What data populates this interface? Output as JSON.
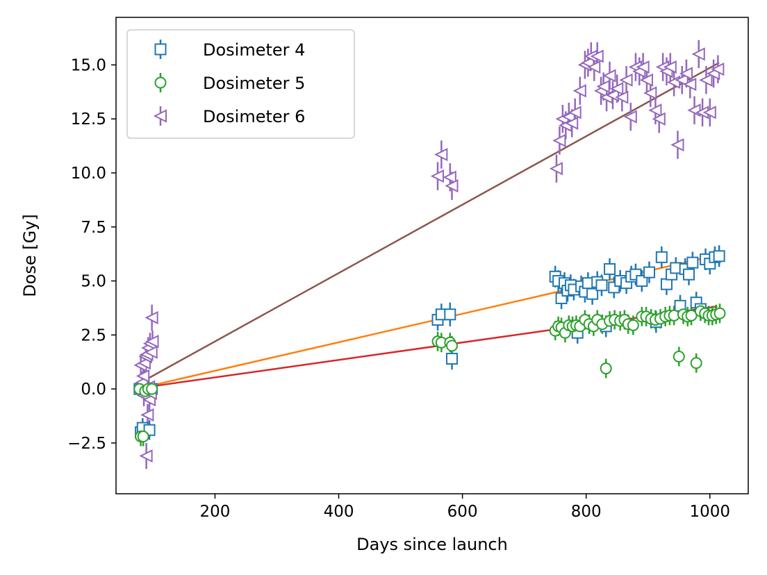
{
  "chart_data": {
    "type": "scatter",
    "title": "",
    "xlabel": "Days since launch",
    "ylabel": "Dose [Gy]",
    "xlim": [
      40,
      1062
    ],
    "ylim": [
      -4.85,
      17.2
    ],
    "x_ticks": [
      200,
      400,
      600,
      800,
      1000
    ],
    "x_tick_labels": [
      "200",
      "400",
      "600",
      "800",
      "1000"
    ],
    "y_ticks": [
      -2.5,
      0.0,
      2.5,
      5.0,
      7.5,
      10.0,
      12.5,
      15.0
    ],
    "y_tick_labels": [
      "−2.5",
      "0.0",
      "2.5",
      "5.0",
      "7.5",
      "10.0",
      "12.5",
      "15.0"
    ],
    "grid": false,
    "legend_position": "top-left",
    "series": [
      {
        "name": "Dosimeter 4",
        "marker": "square",
        "color": "#1f77b4",
        "fit_color": "#ff7f0e",
        "fit": [
          [
            80,
            0.05
          ],
          [
            1012,
            6.2
          ]
        ],
        "points": [
          [
            78,
            0.0,
            0.3
          ],
          [
            80,
            -2.0,
            0.45
          ],
          [
            83,
            -1.8,
            0.45
          ],
          [
            86,
            0.0,
            0.3
          ],
          [
            90,
            -0.15,
            0.3
          ],
          [
            94,
            -1.9,
            0.45
          ],
          [
            98,
            0.0,
            0.3
          ],
          [
            560,
            3.2,
            0.5
          ],
          [
            566,
            3.45,
            0.5
          ],
          [
            580,
            3.45,
            0.55
          ],
          [
            583,
            1.4,
            0.5
          ],
          [
            750,
            5.2,
            0.5
          ],
          [
            755,
            5.0,
            0.5
          ],
          [
            760,
            4.2,
            0.5
          ],
          [
            765,
            4.9,
            0.5
          ],
          [
            770,
            4.55,
            0.5
          ],
          [
            775,
            4.8,
            0.5
          ],
          [
            780,
            4.6,
            0.5
          ],
          [
            786,
            2.6,
            0.5
          ],
          [
            792,
            4.75,
            0.5
          ],
          [
            798,
            4.5,
            0.5
          ],
          [
            803,
            4.9,
            0.5
          ],
          [
            810,
            4.4,
            0.5
          ],
          [
            818,
            4.95,
            0.5
          ],
          [
            825,
            4.8,
            0.5
          ],
          [
            832,
            2.9,
            0.5
          ],
          [
            838,
            5.55,
            0.5
          ],
          [
            845,
            4.7,
            0.5
          ],
          [
            855,
            5.0,
            0.5
          ],
          [
            865,
            4.9,
            0.5
          ],
          [
            873,
            5.2,
            0.5
          ],
          [
            880,
            5.3,
            0.5
          ],
          [
            890,
            5.0,
            0.5
          ],
          [
            902,
            5.4,
            0.5
          ],
          [
            913,
            3.1,
            0.5
          ],
          [
            922,
            6.1,
            0.5
          ],
          [
            930,
            4.85,
            0.5
          ],
          [
            938,
            5.3,
            0.5
          ],
          [
            945,
            5.6,
            0.5
          ],
          [
            952,
            3.85,
            0.5
          ],
          [
            960,
            5.55,
            0.5
          ],
          [
            966,
            5.3,
            0.5
          ],
          [
            972,
            5.85,
            0.5
          ],
          [
            978,
            4.0,
            0.5
          ],
          [
            985,
            3.7,
            0.5
          ],
          [
            993,
            6.0,
            0.5
          ],
          [
            1000,
            5.8,
            0.5
          ],
          [
            1008,
            6.1,
            0.5
          ],
          [
            1015,
            6.15,
            0.5
          ]
        ]
      },
      {
        "name": "Dosimeter 5",
        "marker": "circle",
        "color": "#2ca02c",
        "fit_color": "#d62728",
        "fit": [
          [
            80,
            0.05
          ],
          [
            1012,
            3.82
          ]
        ],
        "points": [
          [
            78,
            0.0,
            0.3
          ],
          [
            80,
            -2.2,
            0.45
          ],
          [
            84,
            -2.2,
            0.45
          ],
          [
            87,
            -0.1,
            0.3
          ],
          [
            92,
            0.0,
            0.3
          ],
          [
            98,
            0.0,
            0.3
          ],
          [
            560,
            2.2,
            0.45
          ],
          [
            566,
            2.15,
            0.45
          ],
          [
            580,
            2.15,
            0.45
          ],
          [
            583,
            2.0,
            0.45
          ],
          [
            750,
            2.7,
            0.45
          ],
          [
            755,
            2.9,
            0.45
          ],
          [
            760,
            2.85,
            0.45
          ],
          [
            766,
            2.6,
            0.45
          ],
          [
            772,
            2.95,
            0.45
          ],
          [
            778,
            2.9,
            0.45
          ],
          [
            784,
            2.95,
            0.45
          ],
          [
            790,
            2.9,
            0.45
          ],
          [
            798,
            3.2,
            0.45
          ],
          [
            805,
            3.0,
            0.45
          ],
          [
            812,
            2.9,
            0.45
          ],
          [
            818,
            3.2,
            0.45
          ],
          [
            826,
            3.0,
            0.45
          ],
          [
            832,
            0.95,
            0.45
          ],
          [
            838,
            3.15,
            0.45
          ],
          [
            846,
            3.2,
            0.45
          ],
          [
            855,
            3.15,
            0.45
          ],
          [
            862,
            3.2,
            0.45
          ],
          [
            868,
            3.0,
            0.45
          ],
          [
            876,
            2.95,
            0.45
          ],
          [
            890,
            3.35,
            0.45
          ],
          [
            897,
            3.35,
            0.45
          ],
          [
            905,
            3.25,
            0.45
          ],
          [
            912,
            3.2,
            0.45
          ],
          [
            920,
            3.25,
            0.45
          ],
          [
            928,
            3.35,
            0.45
          ],
          [
            935,
            3.4,
            0.45
          ],
          [
            942,
            3.4,
            0.45
          ],
          [
            950,
            1.5,
            0.45
          ],
          [
            957,
            3.45,
            0.45
          ],
          [
            964,
            3.35,
            0.45
          ],
          [
            970,
            3.4,
            0.45
          ],
          [
            978,
            1.2,
            0.45
          ],
          [
            985,
            3.6,
            0.45
          ],
          [
            992,
            3.5,
            0.45
          ],
          [
            998,
            3.4,
            0.45
          ],
          [
            1004,
            3.4,
            0.45
          ],
          [
            1010,
            3.45,
            0.45
          ],
          [
            1016,
            3.5,
            0.45
          ]
        ]
      },
      {
        "name": "Dosimeter 6",
        "marker": "triangle-left",
        "color": "#9467bd",
        "fit_color": "#8c564b",
        "fit": [
          [
            80,
            0.3
          ],
          [
            1015,
            15.1
          ]
        ],
        "points": [
          [
            80,
            1.1,
            0.5
          ],
          [
            82,
            0.3,
            0.5
          ],
          [
            84,
            0.6,
            0.5
          ],
          [
            85,
            -0.3,
            0.5
          ],
          [
            86,
            1.2,
            0.5
          ],
          [
            88,
            1.5,
            0.5
          ],
          [
            89,
            -3.1,
            0.6
          ],
          [
            90,
            1.6,
            0.5
          ],
          [
            91,
            -1.2,
            0.5
          ],
          [
            92,
            1.9,
            0.5
          ],
          [
            93,
            0.1,
            0.5
          ],
          [
            94,
            -0.5,
            0.5
          ],
          [
            95,
            2.1,
            0.5
          ],
          [
            96,
            -0.2,
            0.5
          ],
          [
            97,
            1.7,
            0.5
          ],
          [
            98,
            3.3,
            0.6
          ],
          [
            99,
            2.2,
            0.5
          ],
          [
            560,
            9.85,
            0.65
          ],
          [
            566,
            10.85,
            0.65
          ],
          [
            580,
            9.8,
            0.65
          ],
          [
            583,
            9.4,
            0.65
          ],
          [
            752,
            10.2,
            0.65
          ],
          [
            757,
            11.5,
            0.65
          ],
          [
            762,
            12.5,
            0.65
          ],
          [
            767,
            12.2,
            0.65
          ],
          [
            772,
            12.6,
            0.65
          ],
          [
            777,
            12.3,
            0.65
          ],
          [
            782,
            12.8,
            0.65
          ],
          [
            790,
            13.8,
            0.65
          ],
          [
            798,
            15.0,
            0.65
          ],
          [
            803,
            15.1,
            0.65
          ],
          [
            808,
            15.4,
            0.65
          ],
          [
            813,
            14.9,
            0.65
          ],
          [
            818,
            15.4,
            0.65
          ],
          [
            824,
            13.8,
            0.65
          ],
          [
            828,
            14.0,
            0.65
          ],
          [
            833,
            13.5,
            0.65
          ],
          [
            838,
            14.5,
            0.65
          ],
          [
            843,
            13.6,
            0.65
          ],
          [
            850,
            13.9,
            0.65
          ],
          [
            858,
            13.5,
            0.65
          ],
          [
            865,
            14.3,
            0.65
          ],
          [
            872,
            12.6,
            0.65
          ],
          [
            880,
            14.9,
            0.65
          ],
          [
            886,
            14.7,
            0.65
          ],
          [
            892,
            14.9,
            0.65
          ],
          [
            898,
            14.3,
            0.65
          ],
          [
            904,
            13.7,
            0.65
          ],
          [
            912,
            12.9,
            0.65
          ],
          [
            918,
            12.5,
            0.65
          ],
          [
            924,
            14.9,
            0.65
          ],
          [
            930,
            14.7,
            0.65
          ],
          [
            936,
            14.9,
            0.65
          ],
          [
            942,
            14.2,
            0.65
          ],
          [
            948,
            11.3,
            0.65
          ],
          [
            955,
            14.3,
            0.65
          ],
          [
            962,
            14.6,
            0.65
          ],
          [
            968,
            14.1,
            0.65
          ],
          [
            975,
            12.9,
            0.65
          ],
          [
            982,
            15.5,
            0.65
          ],
          [
            988,
            12.8,
            0.65
          ],
          [
            994,
            14.3,
            0.65
          ],
          [
            1000,
            12.8,
            0.65
          ],
          [
            1006,
            14.6,
            0.65
          ],
          [
            1013,
            14.8,
            0.65
          ]
        ]
      }
    ]
  }
}
